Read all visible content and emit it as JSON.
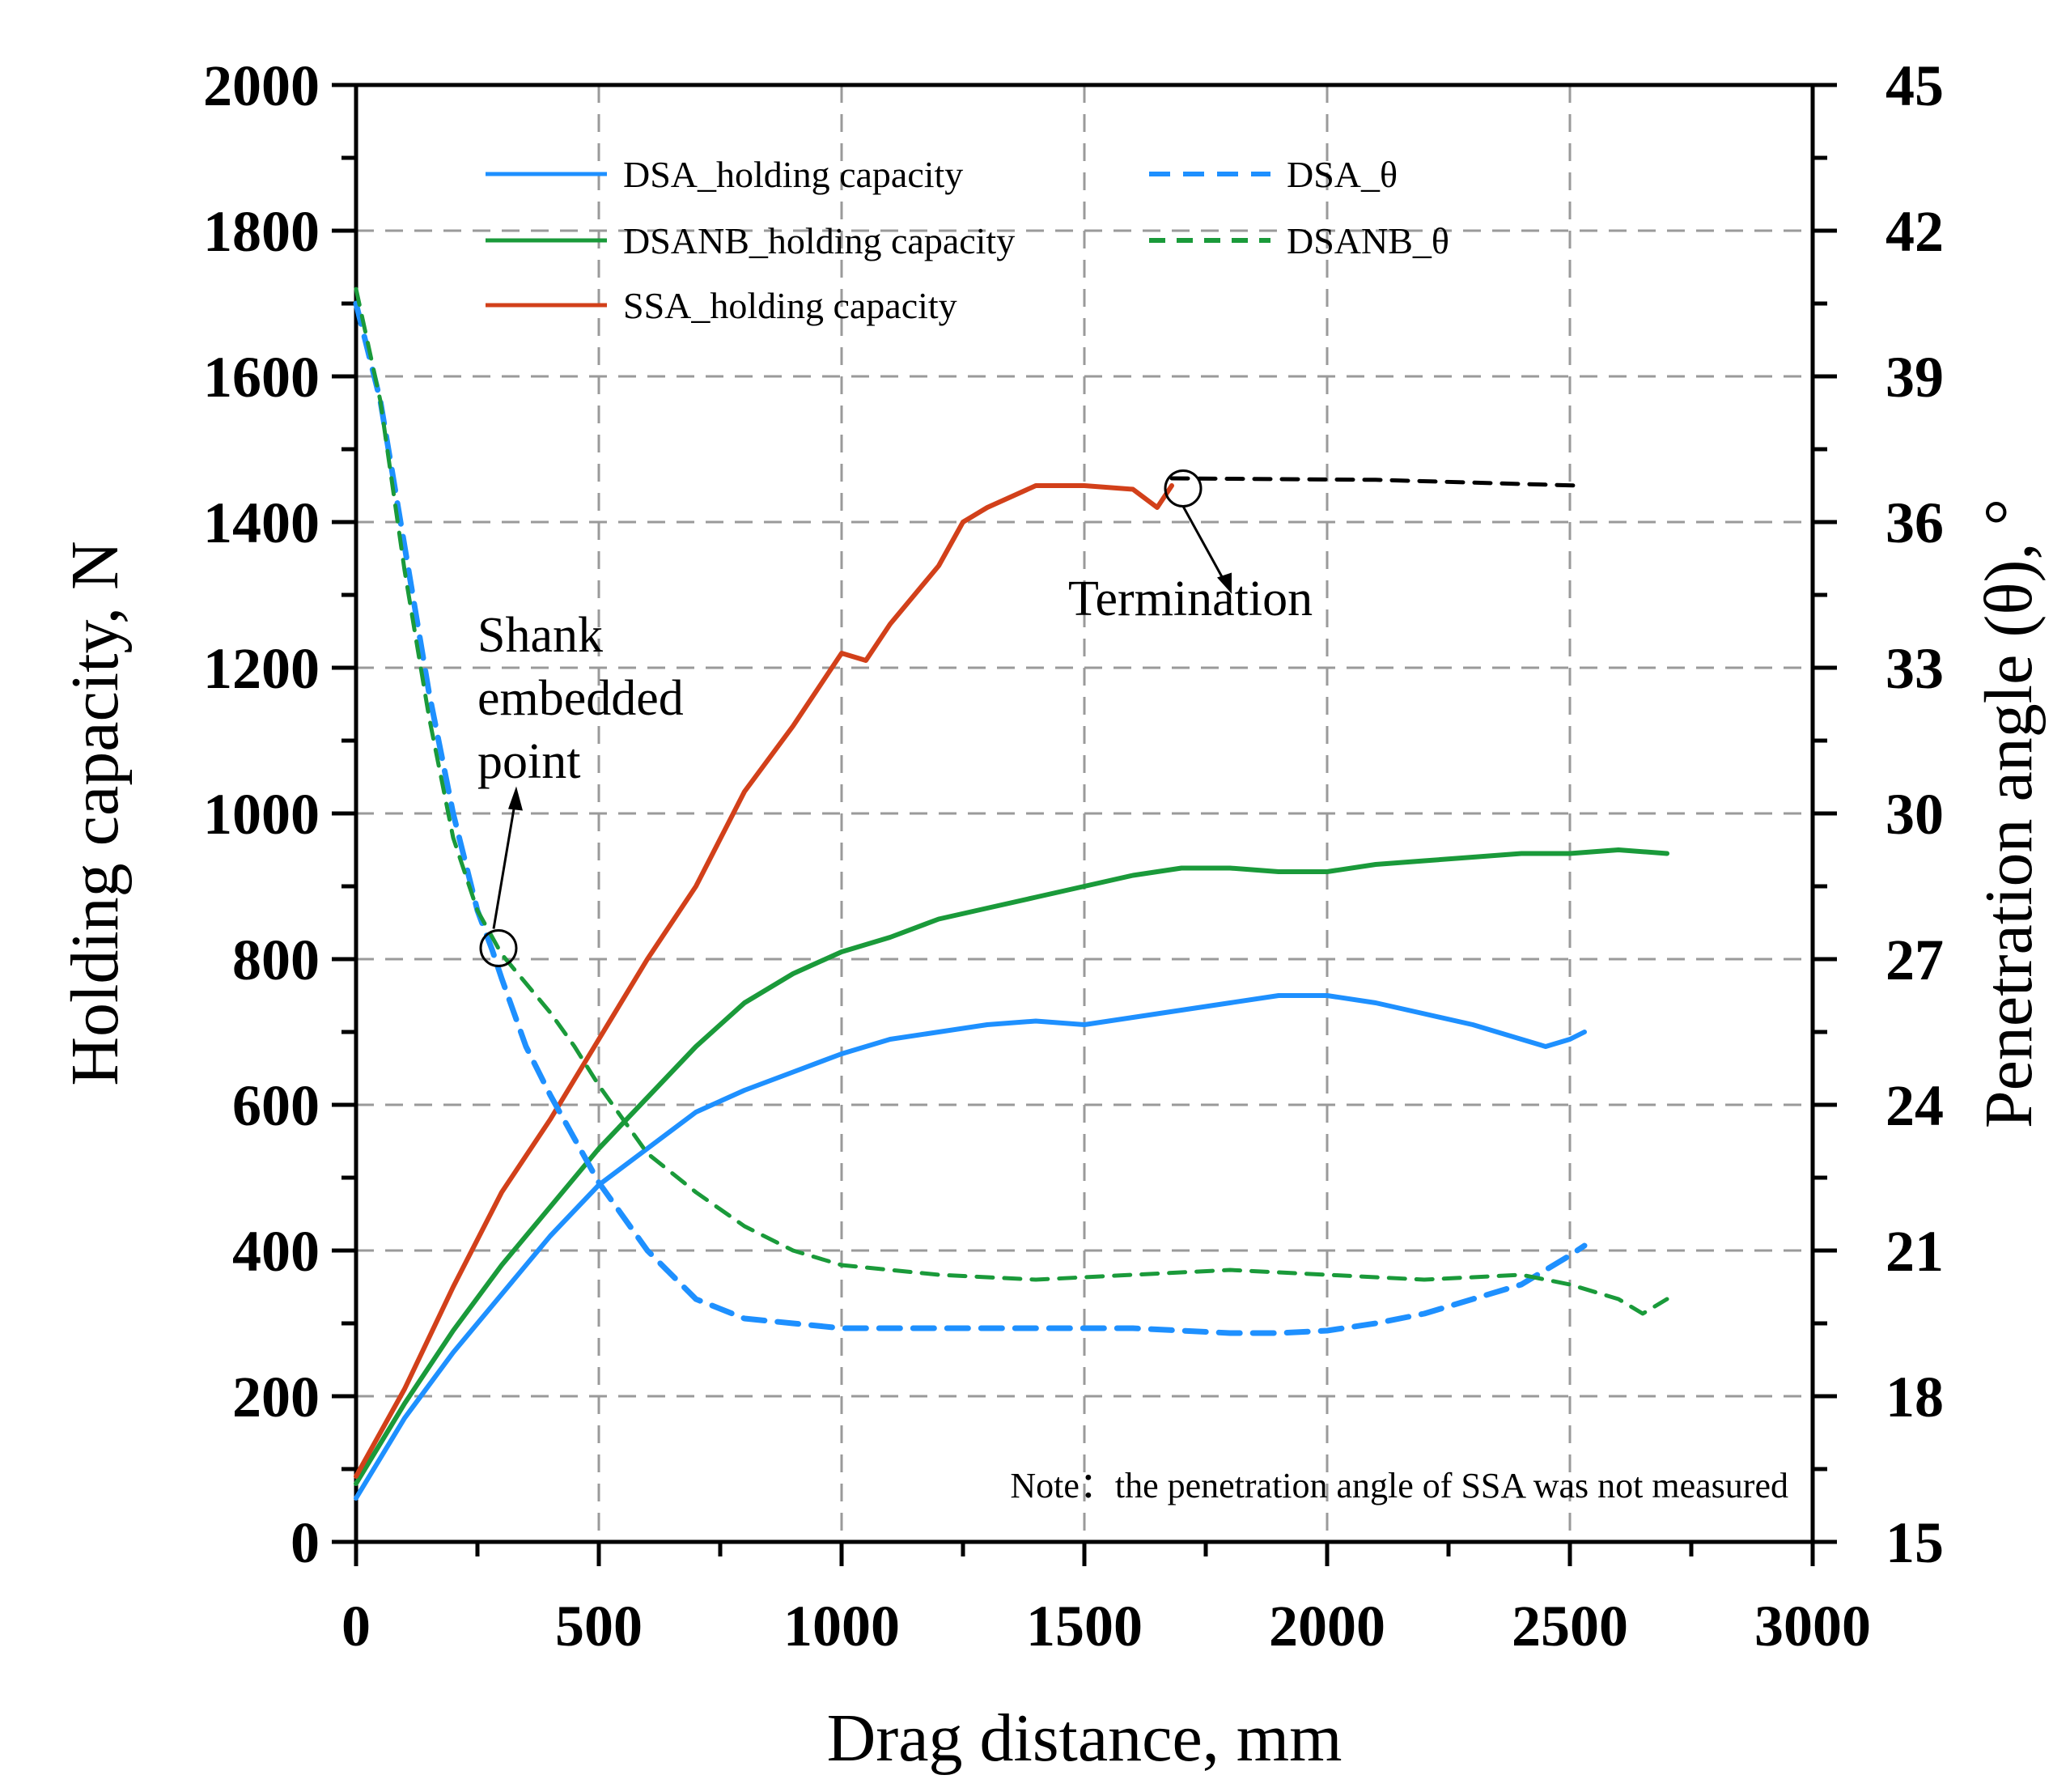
{
  "chart_data": {
    "type": "line",
    "title": "",
    "xlabel": "Drag distance, mm",
    "ylabel": "Holding capacity, N",
    "y2label": "Penetration angle (θ), °",
    "xlim": [
      0,
      3000
    ],
    "ylim": [
      0,
      2000
    ],
    "y2lim": [
      15,
      45
    ],
    "xticks": [
      0,
      500,
      1000,
      1500,
      2000,
      2500,
      3000
    ],
    "yticks": [
      0,
      200,
      400,
      600,
      800,
      1000,
      1200,
      1400,
      1600,
      1800,
      2000
    ],
    "y2ticks": [
      15,
      18,
      21,
      24,
      27,
      30,
      33,
      36,
      39,
      42,
      45
    ],
    "grid": true,
    "legend_position": "top-left",
    "colors": {
      "dsa": "#1e90ff",
      "dsanb": "#1a9a3a",
      "ssa": "#d2401a",
      "termination": "#000000"
    },
    "series": [
      {
        "name": "DSA_holding capacity",
        "axis": "left",
        "style": "solid",
        "color": "#1e90ff",
        "x": [
          0,
          100,
          200,
          300,
          400,
          500,
          600,
          700,
          800,
          900,
          1000,
          1100,
          1200,
          1300,
          1400,
          1500,
          1600,
          1700,
          1800,
          1900,
          2000,
          2100,
          2200,
          2300,
          2400,
          2450,
          2500,
          2530
        ],
        "y": [
          60,
          170,
          260,
          340,
          420,
          490,
          540,
          590,
          620,
          645,
          670,
          690,
          700,
          710,
          715,
          710,
          720,
          730,
          740,
          750,
          750,
          740,
          725,
          710,
          690,
          680,
          690,
          700
        ]
      },
      {
        "name": "DSANB_holding capacity",
        "axis": "left",
        "style": "solid",
        "color": "#1a9a3a",
        "x": [
          0,
          100,
          200,
          300,
          400,
          500,
          600,
          700,
          800,
          900,
          1000,
          1100,
          1200,
          1300,
          1400,
          1500,
          1600,
          1700,
          1800,
          1900,
          2000,
          2100,
          2200,
          2300,
          2400,
          2500,
          2600,
          2700
        ],
        "y": [
          80,
          190,
          290,
          380,
          460,
          540,
          610,
          680,
          740,
          780,
          810,
          830,
          855,
          870,
          885,
          900,
          915,
          925,
          925,
          920,
          920,
          930,
          935,
          940,
          945,
          945,
          950,
          945
        ]
      },
      {
        "name": "SSA_holding capacity",
        "axis": "left",
        "style": "solid",
        "color": "#d2401a",
        "x": [
          0,
          100,
          200,
          300,
          400,
          500,
          600,
          700,
          800,
          900,
          1000,
          1050,
          1100,
          1200,
          1250,
          1300,
          1400,
          1500,
          1600,
          1650,
          1680
        ],
        "y": [
          90,
          210,
          350,
          480,
          580,
          690,
          800,
          900,
          1030,
          1120,
          1220,
          1210,
          1260,
          1340,
          1400,
          1420,
          1450,
          1450,
          1445,
          1420,
          1450
        ]
      },
      {
        "name": "DSA_θ",
        "axis": "right",
        "style": "dashed",
        "color": "#1e90ff",
        "x": [
          0,
          50,
          100,
          150,
          200,
          250,
          280,
          300,
          350,
          400,
          450,
          500,
          600,
          700,
          800,
          900,
          1000,
          1200,
          1400,
          1600,
          1800,
          1900,
          2000,
          2100,
          2200,
          2300,
          2400,
          2450,
          2500,
          2530
        ],
        "y": [
          40.5,
          38.5,
          35.5,
          32.5,
          30.0,
          28.0,
          27.2,
          26.6,
          25.2,
          24.2,
          23.3,
          22.4,
          21.0,
          20.0,
          19.6,
          19.5,
          19.4,
          19.4,
          19.4,
          19.4,
          19.3,
          19.3,
          19.35,
          19.5,
          19.7,
          20.0,
          20.3,
          20.6,
          20.9,
          21.1
        ]
      },
      {
        "name": "DSANB_θ",
        "axis": "right",
        "style": "dashed",
        "color": "#1a9a3a",
        "x": [
          0,
          50,
          100,
          150,
          200,
          250,
          300,
          350,
          400,
          450,
          500,
          600,
          700,
          800,
          900,
          1000,
          1200,
          1400,
          1600,
          1800,
          2000,
          2200,
          2400,
          2500,
          2600,
          2650,
          2700
        ],
        "y": [
          40.8,
          38.5,
          35.0,
          32.0,
          29.5,
          28.0,
          27.1,
          26.5,
          25.9,
          25.2,
          24.4,
          23.0,
          22.2,
          21.5,
          21.0,
          20.7,
          20.5,
          20.4,
          20.5,
          20.6,
          20.5,
          20.4,
          20.5,
          20.3,
          20.0,
          19.7,
          20.0
        ]
      },
      {
        "name": "SSA termination projection",
        "axis": "left",
        "style": "dashed",
        "color": "#000000",
        "x": [
          1680,
          2100,
          2520
        ],
        "y": [
          1460,
          1458,
          1450
        ]
      }
    ],
    "legend": [
      {
        "label": "DSA_holding capacity",
        "series": 0
      },
      {
        "label": "DSA_θ",
        "series": 3
      },
      {
        "label": "DSANB_holding capacity",
        "series": 1
      },
      {
        "label": "DSANB_θ",
        "series": 4
      },
      {
        "label": "SSA_holding capacity",
        "series": 2
      }
    ],
    "annotations": {
      "shank": {
        "lines": [
          "Shank",
          "embedded",
          "point"
        ],
        "x": 280,
        "y": 815
      },
      "termination": {
        "text": "Termination",
        "x": 1690,
        "y": 1455
      },
      "note": "Note：the penetration angle of SSA was not measured"
    }
  }
}
